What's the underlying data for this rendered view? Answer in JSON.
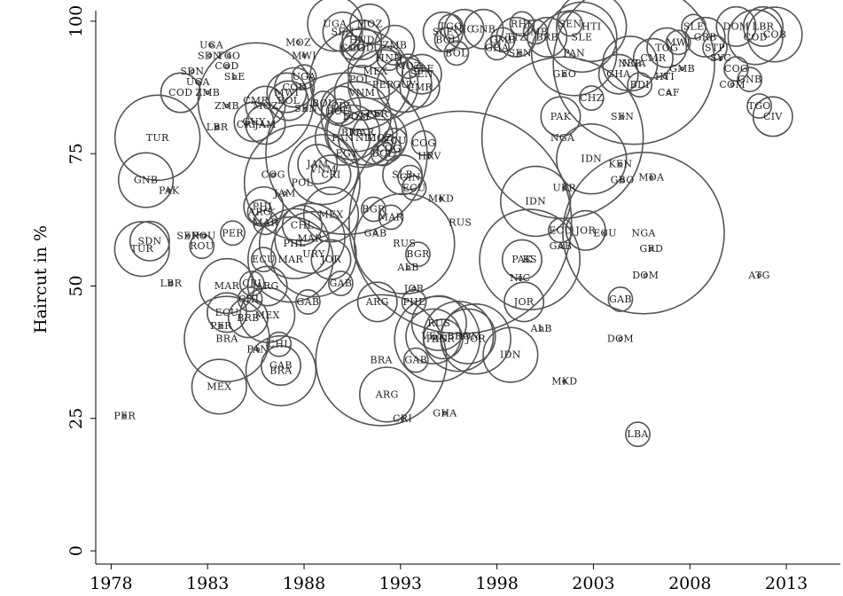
{
  "chart_data": {
    "type": "scatter",
    "ylabel": "Haircut in %",
    "xlabel": "",
    "x_ticks": [
      1978,
      1983,
      1988,
      1993,
      1998,
      2003,
      2008,
      2013
    ],
    "y_ticks": [
      0,
      25,
      50,
      75,
      100
    ],
    "xlim": [
      1977.2,
      2015.8
    ],
    "ylim": [
      -2.5,
      102
    ],
    "bubble_color": "#555555",
    "points": [
      {
        "label": "PER",
        "x": 1978.7,
        "y": 25.5,
        "size": 0
      },
      {
        "label": "LBR",
        "x": 1981.1,
        "y": 50.5,
        "size": 0
      },
      {
        "label": "TUR",
        "x": 1980.4,
        "y": 78,
        "size": 5
      },
      {
        "label": "SDN",
        "x": 1980.0,
        "y": 58.5,
        "size": 2
      },
      {
        "label": "TUR",
        "x": 1979.6,
        "y": 57,
        "size": 3
      },
      {
        "label": "GNB",
        "x": 1979.8,
        "y": 70,
        "size": 3
      },
      {
        "label": "PAK",
        "x": 1981.0,
        "y": 68,
        "size": 0
      },
      {
        "label": "SEN",
        "x": 1982.0,
        "y": 59.5,
        "size": 0
      },
      {
        "label": "ROU",
        "x": 1982.8,
        "y": 59.5,
        "size": 0
      },
      {
        "label": "ROU",
        "x": 1982.7,
        "y": 57.5,
        "size": 1
      },
      {
        "label": "PER",
        "x": 1984.3,
        "y": 60,
        "size": 1
      },
      {
        "label": "MAR",
        "x": 1984.0,
        "y": 50,
        "size": 3
      },
      {
        "label": "ECU",
        "x": 1984.0,
        "y": 45,
        "size": 2
      },
      {
        "label": "PER",
        "x": 1983.7,
        "y": 42.5,
        "size": 0
      },
      {
        "label": "BRA",
        "x": 1984.0,
        "y": 40,
        "size": 5
      },
      {
        "label": "MEX",
        "x": 1983.6,
        "y": 31,
        "size": 3
      },
      {
        "label": "PAN",
        "x": 1985.6,
        "y": 38,
        "size": 0
      },
      {
        "label": "CHL",
        "x": 1986.7,
        "y": 39,
        "size": 1
      },
      {
        "label": "GAB",
        "x": 1986.8,
        "y": 35,
        "size": 2
      },
      {
        "label": "BRA",
        "x": 1986.8,
        "y": 34,
        "size": 4
      },
      {
        "label": "CHL",
        "x": 1985.2,
        "y": 47.5,
        "size": 1
      },
      {
        "label": "BRB",
        "x": 1985.1,
        "y": 44,
        "size": 2
      },
      {
        "label": "MEX",
        "x": 1986.1,
        "y": 44.5,
        "size": 3
      },
      {
        "label": "CRI",
        "x": 1985.3,
        "y": 50.5,
        "size": 1
      },
      {
        "label": "ARG",
        "x": 1986.1,
        "y": 50,
        "size": 2
      },
      {
        "label": "GAB",
        "x": 1988.2,
        "y": 47,
        "size": 1
      },
      {
        "label": "ECU",
        "x": 1985.9,
        "y": 55,
        "size": 1
      },
      {
        "label": "MAR",
        "x": 1987.3,
        "y": 55,
        "size": 5
      },
      {
        "label": "PHL",
        "x": 1987.5,
        "y": 58,
        "size": 4
      },
      {
        "label": "MAR",
        "x": 1988.3,
        "y": 59,
        "size": 4
      },
      {
        "label": "URY",
        "x": 1988.5,
        "y": 56,
        "size": 5
      },
      {
        "label": "JOR",
        "x": 1989.4,
        "y": 55,
        "size": 2
      },
      {
        "label": "GAB",
        "x": 1989.9,
        "y": 50.5,
        "size": 1
      },
      {
        "label": "MAR",
        "x": 1986.0,
        "y": 62,
        "size": 1
      },
      {
        "label": "PHL",
        "x": 1985.9,
        "y": 65,
        "size": 2
      },
      {
        "label": "ARG",
        "x": 1985.7,
        "y": 64,
        "size": 1
      },
      {
        "label": "MEX",
        "x": 1989.4,
        "y": 63.5,
        "size": 3
      },
      {
        "label": "BGR",
        "x": 1991.6,
        "y": 64.5,
        "size": 1
      },
      {
        "label": "MAR",
        "x": 1992.5,
        "y": 63,
        "size": 1
      },
      {
        "label": "GAB",
        "x": 1991.7,
        "y": 60,
        "size": 0
      },
      {
        "label": "CHL",
        "x": 1987.9,
        "y": 61.5,
        "size": 2
      },
      {
        "label": "JAM",
        "x": 1987.0,
        "y": 67.5,
        "size": 0
      },
      {
        "label": "POL",
        "x": 1987.9,
        "y": 69.5,
        "size": 7
      },
      {
        "label": "CRI",
        "x": 1989.4,
        "y": 71,
        "size": 2
      },
      {
        "label": "JAM",
        "x": 1988.7,
        "y": 73,
        "size": 2
      },
      {
        "label": "VNM",
        "x": 1989.0,
        "y": 72,
        "size": 4
      },
      {
        "label": "EGY",
        "x": 1990.2,
        "y": 75,
        "size": 10
      },
      {
        "label": "COG",
        "x": 1986.4,
        "y": 71,
        "size": 0
      },
      {
        "label": "SLB",
        "x": 1993.1,
        "y": 71,
        "size": 2
      },
      {
        "label": "GIN",
        "x": 1993.5,
        "y": 70.5,
        "size": 1
      },
      {
        "label": "ECU",
        "x": 1993.7,
        "y": 68.5,
        "size": 1
      },
      {
        "label": "HRV",
        "x": 1994.5,
        "y": 74.5,
        "size": 0
      },
      {
        "label": "COG",
        "x": 1994.2,
        "y": 77,
        "size": 1
      },
      {
        "label": "RUS",
        "x": 1996.1,
        "y": 62,
        "size": 14
      },
      {
        "label": "MKD",
        "x": 1995.1,
        "y": 66.5,
        "size": 0
      },
      {
        "label": "RUS",
        "x": 1993.2,
        "y": 58,
        "size": 6
      },
      {
        "label": "BGR",
        "x": 1993.9,
        "y": 56,
        "size": 1
      },
      {
        "label": "ALB",
        "x": 1993.4,
        "y": 53.5,
        "size": 0
      },
      {
        "label": "JOR",
        "x": 1993.7,
        "y": 49.5,
        "size": 0
      },
      {
        "label": "PHL",
        "x": 1993.7,
        "y": 47,
        "size": 1
      },
      {
        "label": "ARG",
        "x": 1991.8,
        "y": 47,
        "size": 2
      },
      {
        "label": "RUS",
        "x": 1995.0,
        "y": 43,
        "size": 3
      },
      {
        "label": "PAN",
        "x": 1994.9,
        "y": 40,
        "size": 5
      },
      {
        "label": "BRA",
        "x": 1996.0,
        "y": 40.5,
        "size": 4
      },
      {
        "label": "DOM",
        "x": 1996.5,
        "y": 40.5,
        "size": 3
      },
      {
        "label": "VEN",
        "x": 1994.7,
        "y": 40.5,
        "size": 3
      },
      {
        "label": "BGR",
        "x": 1995.2,
        "y": 40,
        "size": 2
      },
      {
        "label": "JOR",
        "x": 1996.9,
        "y": 40,
        "size": 4
      },
      {
        "label": "BRA",
        "x": 1992.0,
        "y": 36,
        "size": 8
      },
      {
        "label": "GAB",
        "x": 1993.8,
        "y": 36,
        "size": 1
      },
      {
        "label": "ARG",
        "x": 1992.3,
        "y": 29.5,
        "size": 3
      },
      {
        "label": "CRI",
        "x": 1993.1,
        "y": 25,
        "size": 0
      },
      {
        "label": "GHA",
        "x": 1995.3,
        "y": 26,
        "size": 0
      },
      {
        "label": "IDN",
        "x": 1998.7,
        "y": 37,
        "size": 3
      },
      {
        "label": "MKD",
        "x": 2001.5,
        "y": 32,
        "size": 0
      },
      {
        "label": "ALB",
        "x": 2000.3,
        "y": 42,
        "size": 0
      },
      {
        "label": "JOR",
        "x": 1999.4,
        "y": 47,
        "size": 2
      },
      {
        "label": "NIC",
        "x": 1999.2,
        "y": 51.5,
        "size": 0
      },
      {
        "label": "PAK",
        "x": 1999.3,
        "y": 55,
        "size": 2
      },
      {
        "label": "KS",
        "x": 1999.7,
        "y": 55,
        "size": 6
      },
      {
        "label": "GAB",
        "x": 2001.3,
        "y": 57.5,
        "size": 0
      },
      {
        "label": "ECU",
        "x": 2001.3,
        "y": 60.5,
        "size": 1
      },
      {
        "label": "JOR",
        "x": 2002.6,
        "y": 60.5,
        "size": 2
      },
      {
        "label": "ECU",
        "x": 2003.6,
        "y": 60,
        "size": 0
      },
      {
        "label": "UKR",
        "x": 2001.5,
        "y": 68.5,
        "size": 0
      },
      {
        "label": "IDN",
        "x": 2000.0,
        "y": 66,
        "size": 4
      },
      {
        "label": "IDN",
        "x": 2002.9,
        "y": 74,
        "size": 4
      },
      {
        "label": "KEN",
        "x": 2004.4,
        "y": 73,
        "size": 0
      },
      {
        "label": "NGA",
        "x": 2001.4,
        "y": 78,
        "size": 10
      },
      {
        "label": "PAK",
        "x": 2001.3,
        "y": 82,
        "size": 2
      },
      {
        "label": "GBO",
        "x": 2004.5,
        "y": 70,
        "size": 0
      },
      {
        "label": "MDA",
        "x": 2006.0,
        "y": 70.5,
        "size": 0
      },
      {
        "label": "NGA",
        "x": 2005.6,
        "y": 60,
        "size": 10
      },
      {
        "label": "GRD",
        "x": 2006.0,
        "y": 57,
        "size": 0
      },
      {
        "label": "DOM",
        "x": 2005.7,
        "y": 52,
        "size": 0
      },
      {
        "label": "ATG",
        "x": 2011.6,
        "y": 52,
        "size": 0
      },
      {
        "label": "GAB",
        "x": 2004.4,
        "y": 47.5,
        "size": 1
      },
      {
        "label": "DOM",
        "x": 2004.4,
        "y": 40,
        "size": 0
      },
      {
        "label": "LBA",
        "x": 2005.3,
        "y": 22,
        "size": 1
      },
      {
        "label": "SEN",
        "x": 2004.5,
        "y": 82,
        "size": 0
      },
      {
        "label": "GEO",
        "x": 2001.5,
        "y": 90,
        "size": 0
      },
      {
        "label": "CHZ",
        "x": 2002.9,
        "y": 85.5,
        "size": 1
      },
      {
        "label": "PAN",
        "x": 2002.0,
        "y": 94,
        "size": 5
      },
      {
        "label": "SLE",
        "x": 2002.4,
        "y": 97,
        "size": 4
      },
      {
        "label": "HTI",
        "x": 2002.9,
        "y": 99,
        "size": 4
      },
      {
        "label": "NGA",
        "x": 2005.1,
        "y": 92,
        "size": 10
      },
      {
        "label": "NER",
        "x": 2004.9,
        "y": 92,
        "size": 3
      },
      {
        "label": "GHA",
        "x": 2004.3,
        "y": 90,
        "size": 2
      },
      {
        "label": "BDI",
        "x": 2005.4,
        "y": 88,
        "size": 1
      },
      {
        "label": "CMR",
        "x": 2006.1,
        "y": 93,
        "size": 2
      },
      {
        "label": "CAF",
        "x": 2006.9,
        "y": 86.5,
        "size": 0
      },
      {
        "label": "HTI",
        "x": 2006.7,
        "y": 89.5,
        "size": 0
      },
      {
        "label": "GMB",
        "x": 2007.6,
        "y": 91,
        "size": 0
      },
      {
        "label": "TOG",
        "x": 2006.8,
        "y": 95,
        "size": 2
      },
      {
        "label": "MWI",
        "x": 2007.4,
        "y": 96,
        "size": 1
      },
      {
        "label": "SLE",
        "x": 2008.2,
        "y": 99,
        "size": 1
      },
      {
        "label": "GRB",
        "x": 2008.8,
        "y": 97,
        "size": 2
      },
      {
        "label": "STP",
        "x": 2009.3,
        "y": 95,
        "size": 1
      },
      {
        "label": "SYC",
        "x": 2009.6,
        "y": 93,
        "size": 0
      },
      {
        "label": "COG",
        "x": 2010.4,
        "y": 91,
        "size": 1
      },
      {
        "label": "GNB",
        "x": 2011.1,
        "y": 89,
        "size": 1
      },
      {
        "label": "COM",
        "x": 2010.2,
        "y": 88,
        "size": 0
      },
      {
        "label": "DOM",
        "x": 2010.4,
        "y": 99,
        "size": 2
      },
      {
        "label": "LBR",
        "x": 2011.8,
        "y": 99,
        "size": 2
      },
      {
        "label": "COD",
        "x": 2011.4,
        "y": 97,
        "size": 3
      },
      {
        "label": "COB",
        "x": 2012.4,
        "y": 97.5,
        "size": 3
      },
      {
        "label": "TGO",
        "x": 2011.6,
        "y": 84,
        "size": 1
      },
      {
        "label": "CIV",
        "x": 2012.3,
        "y": 82,
        "size": 2
      },
      {
        "label": "MOZ",
        "x": 1987.7,
        "y": 96,
        "size": 0
      },
      {
        "label": "MWI",
        "x": 1988.0,
        "y": 93.5,
        "size": 0
      },
      {
        "label": "UGA",
        "x": 1983.2,
        "y": 95.5,
        "size": 0
      },
      {
        "label": "SDN",
        "x": 1983.1,
        "y": 93.5,
        "size": 0
      },
      {
        "label": "TGO",
        "x": 1984.1,
        "y": 93.5,
        "size": 0
      },
      {
        "label": "COD",
        "x": 1984.0,
        "y": 91.5,
        "size": 0
      },
      {
        "label": "SDN",
        "x": 1982.2,
        "y": 90.5,
        "size": 0
      },
      {
        "label": "SLE",
        "x": 1984.4,
        "y": 89.5,
        "size": 0
      },
      {
        "label": "UGA",
        "x": 1982.5,
        "y": 88.5,
        "size": 0
      },
      {
        "label": "COD",
        "x": 1981.6,
        "y": 86.5,
        "size": 2
      },
      {
        "label": "ZMB",
        "x": 1983.0,
        "y": 86.5,
        "size": 0
      },
      {
        "label": "ZMB",
        "x": 1984.0,
        "y": 84,
        "size": 0
      },
      {
        "label": "UGA",
        "x": 1988.0,
        "y": 89.5,
        "size": 1
      },
      {
        "label": "CMR",
        "x": 1985.5,
        "y": 85,
        "size": 7
      },
      {
        "label": "COD",
        "x": 1987.5,
        "y": 87.5,
        "size": 2
      },
      {
        "label": "MWI",
        "x": 1987.1,
        "y": 86.5,
        "size": 2
      },
      {
        "label": "BOL",
        "x": 1987.2,
        "y": 85,
        "size": 2
      },
      {
        "label": "MOZ",
        "x": 1986.0,
        "y": 84,
        "size": 2
      },
      {
        "label": "LBR",
        "x": 1983.5,
        "y": 80,
        "size": 0
      },
      {
        "label": "CRI",
        "x": 1985.0,
        "y": 80.5,
        "size": 0
      },
      {
        "label": "GUY",
        "x": 1985.4,
        "y": 81,
        "size": 2
      },
      {
        "label": "JAM",
        "x": 1986.0,
        "y": 80.5,
        "size": 2
      },
      {
        "label": "SEN",
        "x": 1988.1,
        "y": 83.5,
        "size": 0
      },
      {
        "label": "BOL",
        "x": 1989.0,
        "y": 84.5,
        "size": 1
      },
      {
        "label": "CIV",
        "x": 1989.9,
        "y": 84,
        "size": 2
      },
      {
        "label": "ROU",
        "x": 1989.8,
        "y": 83,
        "size": 1
      },
      {
        "label": "POL",
        "x": 1990.9,
        "y": 89,
        "size": 6
      },
      {
        "label": "PER",
        "x": 1992.1,
        "y": 88,
        "size": 4
      },
      {
        "label": "GUY",
        "x": 1993.2,
        "y": 88,
        "size": 3
      },
      {
        "label": "CMR",
        "x": 1994.0,
        "y": 87.5,
        "size": 2
      },
      {
        "label": "VNM",
        "x": 1991.0,
        "y": 86.5,
        "size": 3
      },
      {
        "label": "MEX",
        "x": 1991.7,
        "y": 90.5,
        "size": 3
      },
      {
        "label": "MAR",
        "x": 1991.0,
        "y": 79,
        "size": 4
      },
      {
        "label": "DOM",
        "x": 1990.7,
        "y": 82,
        "size": 4
      },
      {
        "label": "PER",
        "x": 1991.8,
        "y": 82.5,
        "size": 0
      },
      {
        "label": "BRA",
        "x": 1990.5,
        "y": 79,
        "size": 3
      },
      {
        "label": "PAN",
        "x": 1990.0,
        "y": 78,
        "size": 3
      },
      {
        "label": "NIC",
        "x": 1991.2,
        "y": 78,
        "size": 3
      },
      {
        "label": "MOZ",
        "x": 1991.9,
        "y": 78,
        "size": 3
      },
      {
        "label": "ECU",
        "x": 1992.7,
        "y": 77.5,
        "size": 1
      },
      {
        "label": "COG",
        "x": 1992.4,
        "y": 76,
        "size": 1
      },
      {
        "label": "BOL",
        "x": 1992.1,
        "y": 75,
        "size": 1
      },
      {
        "label": "SEN",
        "x": 1994.1,
        "y": 90,
        "size": 2
      },
      {
        "label": "MOZ",
        "x": 1993.4,
        "y": 91.5,
        "size": 1
      },
      {
        "label": "SLE",
        "x": 1994.2,
        "y": 91,
        "size": 0
      },
      {
        "label": "HND",
        "x": 1992.4,
        "y": 93,
        "size": 1
      },
      {
        "label": "COD",
        "x": 1991.0,
        "y": 95,
        "size": 2
      },
      {
        "label": "COG",
        "x": 1990.5,
        "y": 95,
        "size": 1
      },
      {
        "label": "ZMB",
        "x": 1992.7,
        "y": 95.5,
        "size": 2
      },
      {
        "label": "HND",
        "x": 1991.0,
        "y": 96.5,
        "size": 2
      },
      {
        "label": "SEN",
        "x": 1990.0,
        "y": 98,
        "size": 2
      },
      {
        "label": "UGA",
        "x": 1989.6,
        "y": 99.5,
        "size": 3
      },
      {
        "label": "MOZ",
        "x": 1991.4,
        "y": 99.5,
        "size": 2
      },
      {
        "label": "BOL",
        "x": 1995.4,
        "y": 96.5,
        "size": 1
      },
      {
        "label": "BOL",
        "x": 1995.9,
        "y": 94,
        "size": 1
      },
      {
        "label": "SLE",
        "x": 1995.2,
        "y": 98,
        "size": 2
      },
      {
        "label": "TGO",
        "x": 1995.6,
        "y": 99,
        "size": 1
      },
      {
        "label": "NIC",
        "x": 1996.3,
        "y": 98.5,
        "size": 2
      },
      {
        "label": "GNB",
        "x": 1997.3,
        "y": 98.5,
        "size": 2
      },
      {
        "label": "GHA",
        "x": 1998.0,
        "y": 95,
        "size": 1
      },
      {
        "label": "GMB",
        "x": 1998.3,
        "y": 96.5,
        "size": 1
      },
      {
        "label": "SEN",
        "x": 1999.2,
        "y": 94,
        "size": 0
      },
      {
        "label": "TTZ",
        "x": 1999.0,
        "y": 97,
        "size": 2
      },
      {
        "label": "RHL",
        "x": 1999.3,
        "y": 99.5,
        "size": 1
      },
      {
        "label": "ZMB",
        "x": 2000.0,
        "y": 98,
        "size": 1
      },
      {
        "label": "BRB",
        "x": 2000.6,
        "y": 97,
        "size": 2
      },
      {
        "label": "SEN",
        "x": 2001.8,
        "y": 99.5,
        "size": 1
      }
    ]
  }
}
